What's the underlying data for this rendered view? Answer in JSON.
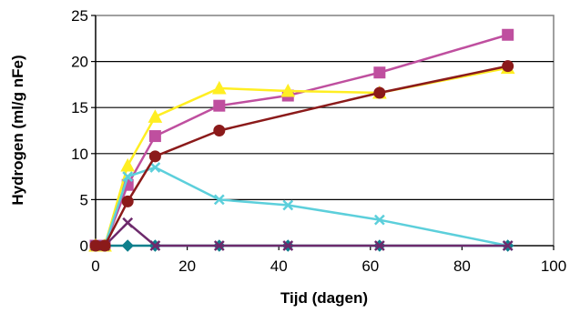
{
  "chart_data": {
    "type": "line",
    "title": "",
    "xlabel": "Tijd (dagen)",
    "ylabel": "Hydrogen (ml/g nFe)",
    "xlim": [
      0,
      100
    ],
    "ylim": [
      0,
      25
    ],
    "xticks": [
      0,
      20,
      40,
      60,
      80,
      100
    ],
    "yticks": [
      0,
      5,
      10,
      15,
      20,
      25
    ],
    "grid": "horizontal",
    "legend": "none",
    "series": [
      {
        "color": "#0e7f8c",
        "marker": "diamond",
        "x": [
          0,
          2,
          7,
          13,
          27,
          42,
          62,
          90
        ],
        "y": [
          0,
          0,
          0,
          0,
          0,
          0,
          0,
          0
        ]
      },
      {
        "color": "#bf4f9f",
        "marker": "square",
        "x": [
          0,
          2,
          7,
          13,
          27,
          42,
          62,
          90
        ],
        "y": [
          0,
          0,
          6.6,
          11.9,
          15.2,
          16.3,
          18.8,
          22.9
        ]
      },
      {
        "color": "#ffee22",
        "marker": "triangle",
        "x": [
          0,
          2,
          7,
          13,
          27,
          42,
          62,
          90
        ],
        "y": [
          0,
          0,
          8.7,
          14.0,
          17.1,
          16.8,
          16.6,
          19.3
        ]
      },
      {
        "color": "#5ccfdb",
        "marker": "x",
        "x": [
          0,
          2,
          7,
          13,
          27,
          42,
          62,
          90
        ],
        "y": [
          0,
          0,
          7.5,
          8.5,
          5.0,
          4.4,
          2.8,
          0
        ]
      },
      {
        "color": "#6d2a6c",
        "marker": "x",
        "x": [
          0,
          2,
          7,
          13,
          27,
          42,
          62,
          90
        ],
        "y": [
          0,
          0,
          2.5,
          0,
          0,
          0,
          0,
          0
        ]
      },
      {
        "color": "#8b1a1a",
        "marker": "circle",
        "x": [
          0,
          2,
          7,
          13,
          27,
          42,
          62,
          90
        ],
        "y": [
          0,
          0,
          4.8,
          9.7,
          12.5,
          null,
          16.6,
          19.5
        ]
      }
    ]
  }
}
